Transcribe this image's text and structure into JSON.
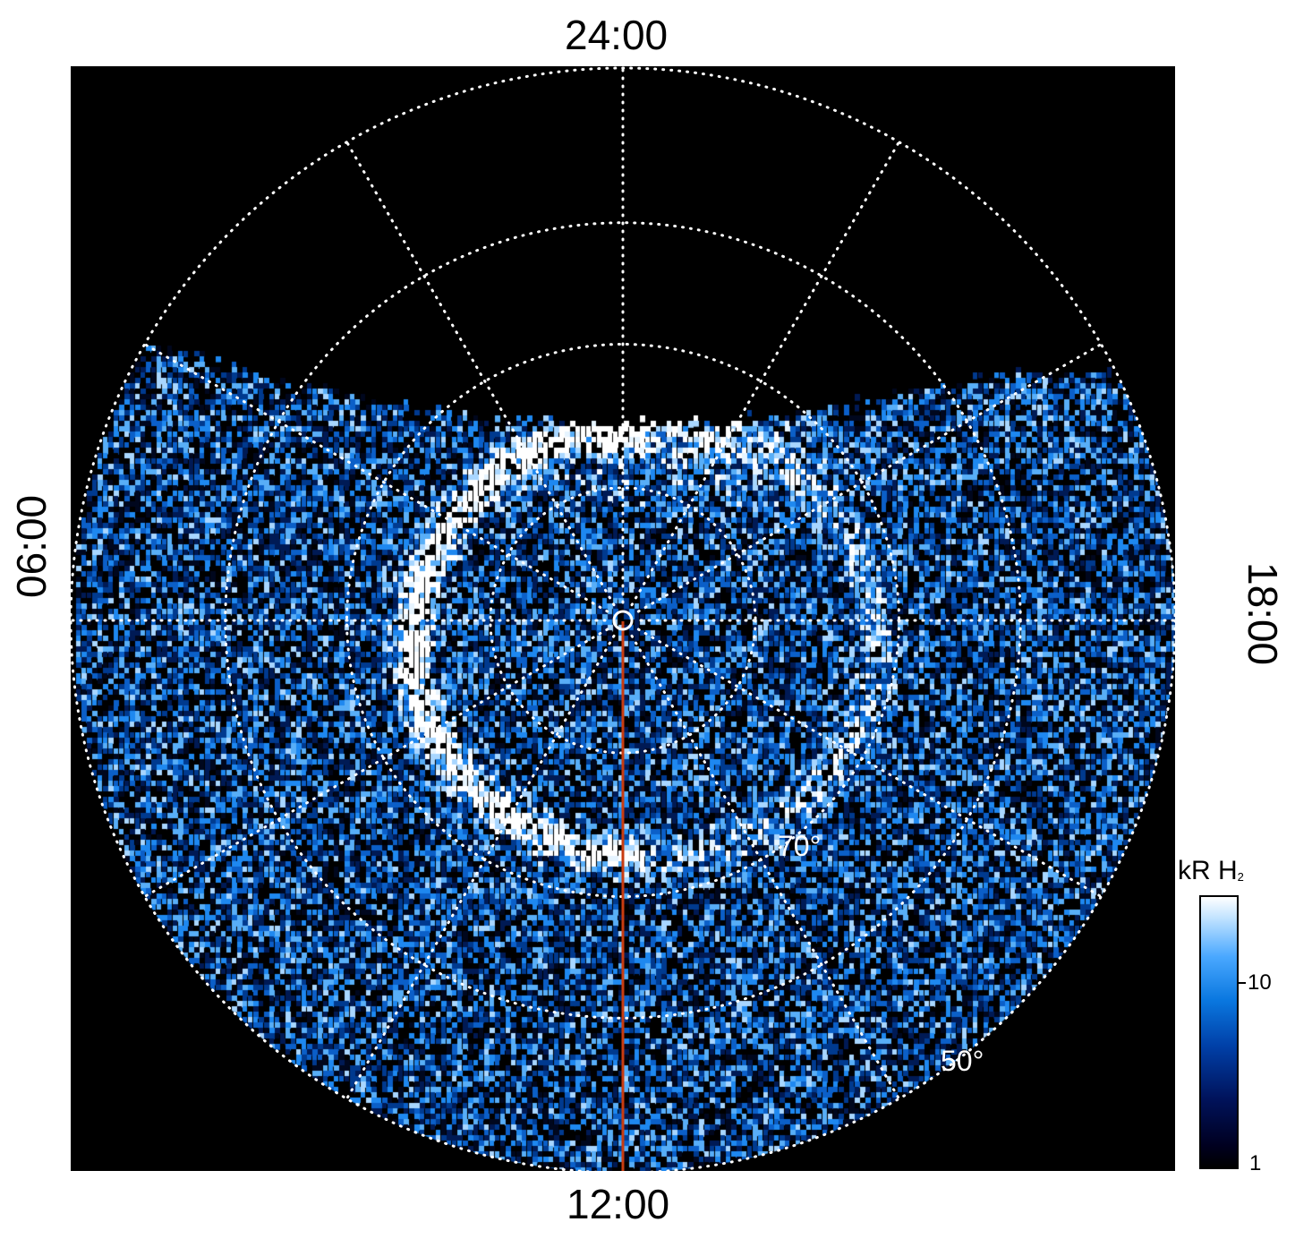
{
  "local_time_labels": {
    "top": "24:00",
    "bottom": "12:00",
    "left": "06:00",
    "right": "18:00"
  },
  "latitude_labels": [
    "70°",
    "50°"
  ],
  "colorbar": {
    "title_main": "kR H",
    "title_sub": "2",
    "ticks": [
      "10",
      "1"
    ],
    "scale": "log",
    "colors": [
      "#000000",
      "#00125a",
      "#0a78e0",
      "#4aa8ff",
      "#ffffff"
    ]
  },
  "colors": {
    "background": "#000000",
    "grid": "#ffffff",
    "meridian_line": "#c83c10"
  }
}
